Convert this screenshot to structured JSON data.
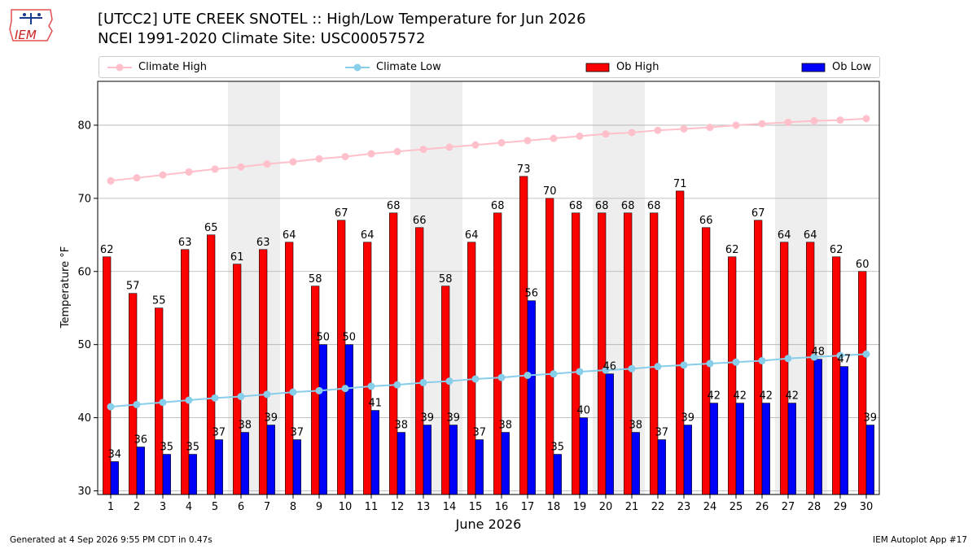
{
  "header": {
    "title_line1": "[UTCC2] UTE CREEK SNOTEL :: High/Low Temperature for Jun 2026",
    "title_line2": "NCEI 1991-2020 Climate Site: USC00057572",
    "logo_text": "IEM"
  },
  "footer": {
    "generated": "Generated at 4 Sep 2026 9:55 PM CDT in 0.47s",
    "app": "IEM Autoplot App #17"
  },
  "legend": {
    "climate_high": "Climate High",
    "climate_low": "Climate Low",
    "ob_high": "Ob High",
    "ob_low": "Ob Low"
  },
  "colors": {
    "ob_high": "#ff0000",
    "ob_low": "#0000ff",
    "climate_high": "#ffc0cb",
    "climate_low": "#87ceeb",
    "weekend_shade": "#eeeeee",
    "grid": "#b0b0b0"
  },
  "chart_data": {
    "type": "bar",
    "xlabel": "June 2026",
    "ylabel": "Temperature °F",
    "ylim": [
      29.5,
      86
    ],
    "yticks": [
      30,
      40,
      50,
      60,
      70,
      80
    ],
    "grid": "horizontal",
    "legend_position": "top",
    "categories": [
      "1",
      "2",
      "3",
      "4",
      "5",
      "6",
      "7",
      "8",
      "9",
      "10",
      "11",
      "12",
      "13",
      "14",
      "15",
      "16",
      "17",
      "18",
      "19",
      "20",
      "21",
      "22",
      "23",
      "24",
      "25",
      "26",
      "27",
      "28",
      "29",
      "30"
    ],
    "shaded_weekends": [
      [
        6,
        7
      ],
      [
        13,
        14
      ],
      [
        20,
        21
      ],
      [
        27,
        28
      ]
    ],
    "series": [
      {
        "name": "Ob High",
        "kind": "bar",
        "values": [
          62,
          57,
          55,
          63,
          65,
          61,
          63,
          64,
          58,
          67,
          64,
          68,
          66,
          58,
          64,
          68,
          73,
          70,
          68,
          68,
          68,
          68,
          71,
          66,
          62,
          67,
          64,
          64,
          62,
          60
        ]
      },
      {
        "name": "Ob Low",
        "kind": "bar",
        "values": [
          34,
          36,
          35,
          35,
          37,
          38,
          39,
          37,
          50,
          50,
          41,
          38,
          39,
          39,
          37,
          38,
          56,
          35,
          40,
          46,
          38,
          37,
          39,
          42,
          42,
          42,
          42,
          48,
          47,
          39
        ]
      },
      {
        "name": "Climate High",
        "kind": "line",
        "values": [
          72.4,
          72.8,
          73.2,
          73.6,
          74.0,
          74.3,
          74.7,
          75.0,
          75.4,
          75.7,
          76.1,
          76.4,
          76.7,
          77.0,
          77.3,
          77.6,
          77.9,
          78.2,
          78.5,
          78.8,
          79.0,
          79.3,
          79.5,
          79.7,
          80.0,
          80.2,
          80.4,
          80.6,
          80.7,
          80.9
        ]
      },
      {
        "name": "Climate Low",
        "kind": "line",
        "values": [
          41.5,
          41.8,
          42.1,
          42.4,
          42.7,
          42.9,
          43.2,
          43.5,
          43.7,
          44.0,
          44.3,
          44.5,
          44.8,
          45.0,
          45.3,
          45.5,
          45.8,
          46.0,
          46.3,
          46.5,
          46.7,
          47.0,
          47.2,
          47.4,
          47.6,
          47.8,
          48.1,
          48.3,
          48.5,
          48.7
        ]
      }
    ],
    "bar_labels": {
      "ob_high": [
        "62",
        "57",
        "55",
        "63",
        "65",
        "61",
        "63",
        "64",
        "58",
        "67",
        "64",
        "68",
        "66",
        "58",
        "64",
        "68",
        "73",
        "70",
        "68",
        "68",
        "68",
        "68",
        "71",
        "66",
        "62",
        "67",
        "64",
        "64",
        "62",
        "60"
      ],
      "ob_low": [
        "34",
        "36",
        "35",
        "35",
        "37",
        "38",
        "39",
        "37",
        "50",
        "50",
        "41",
        "38",
        "39",
        "39",
        "37",
        "38",
        "56",
        "35",
        "40",
        "46",
        "38",
        "37",
        "39",
        "42",
        "42",
        "42",
        "42",
        "48",
        "47",
        "39"
      ]
    }
  }
}
